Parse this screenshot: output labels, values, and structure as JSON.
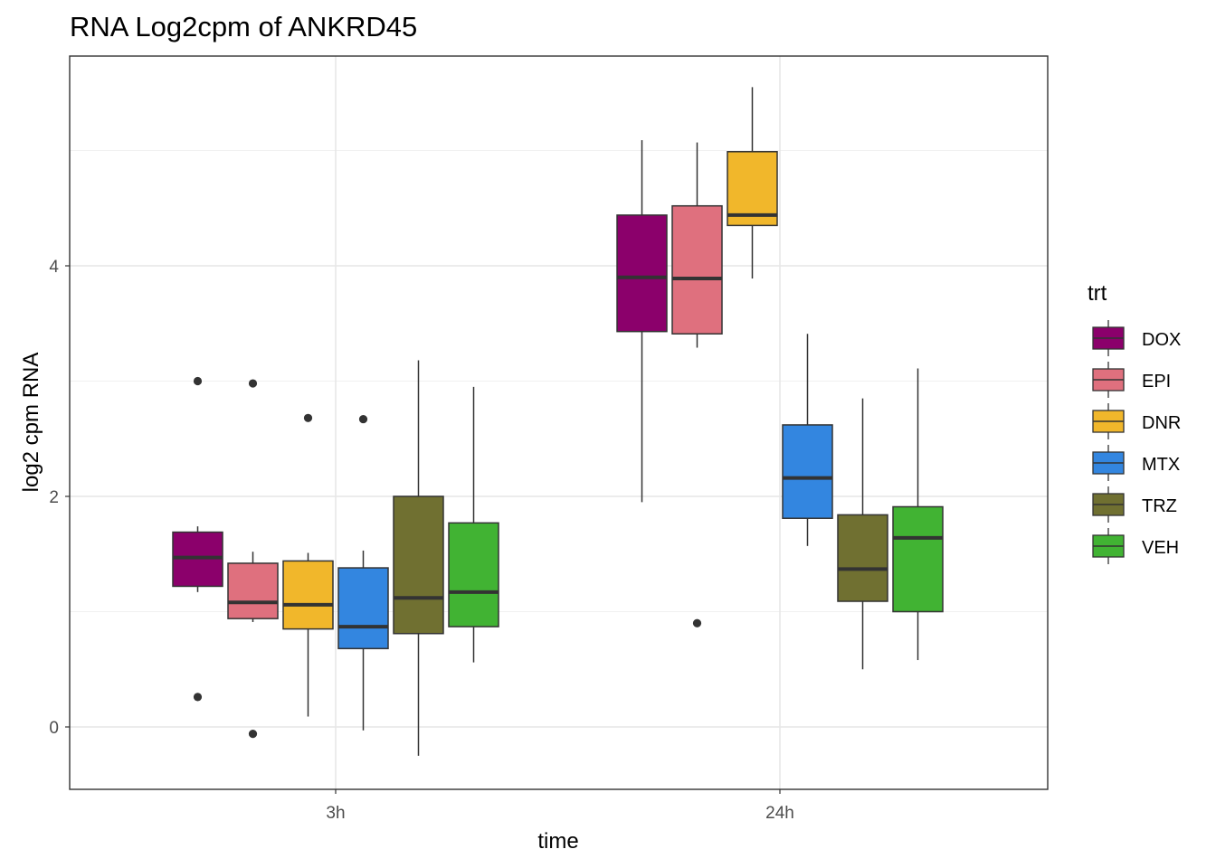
{
  "chart_data": {
    "type": "boxplot",
    "title": "RNA Log2cpm of ANKRD45",
    "xlabel": "time",
    "ylabel": "log2 cpm RNA",
    "categories": [
      "3h",
      "24h"
    ],
    "y_ticks": [
      0,
      2,
      4
    ],
    "ylim": [
      -0.55,
      5.8
    ],
    "grid": true,
    "legend": {
      "title": "trt",
      "position": "right"
    },
    "series": [
      {
        "name": "DOX",
        "color": "#8B006B",
        "boxes": [
          {
            "category": "3h",
            "q1": 1.22,
            "median": 1.47,
            "q3": 1.69,
            "lower_whisker": 1.17,
            "upper_whisker": 1.74,
            "outliers": [
              3.0,
              0.26
            ]
          },
          {
            "category": "24h",
            "q1": 3.43,
            "median": 3.9,
            "q3": 4.44,
            "lower_whisker": 1.95,
            "upper_whisker": 5.09,
            "outliers": []
          }
        ]
      },
      {
        "name": "EPI",
        "color": "#DF707E",
        "boxes": [
          {
            "category": "3h",
            "q1": 0.94,
            "median": 1.08,
            "q3": 1.42,
            "lower_whisker": 0.91,
            "upper_whisker": 1.52,
            "outliers": [
              2.98,
              -0.06
            ]
          },
          {
            "category": "24h",
            "q1": 3.41,
            "median": 3.89,
            "q3": 4.52,
            "lower_whisker": 3.29,
            "upper_whisker": 5.07,
            "outliers": [
              0.9
            ]
          }
        ]
      },
      {
        "name": "DNR",
        "color": "#F1B72B",
        "boxes": [
          {
            "category": "3h",
            "q1": 0.85,
            "median": 1.06,
            "q3": 1.44,
            "lower_whisker": 0.09,
            "upper_whisker": 1.51,
            "outliers": [
              2.68
            ]
          },
          {
            "category": "24h",
            "q1": 4.35,
            "median": 4.44,
            "q3": 4.99,
            "lower_whisker": 3.89,
            "upper_whisker": 5.55,
            "outliers": []
          }
        ]
      },
      {
        "name": "MTX",
        "color": "#3386E0",
        "boxes": [
          {
            "category": "3h",
            "q1": 0.68,
            "median": 0.87,
            "q3": 1.38,
            "lower_whisker": -0.03,
            "upper_whisker": 1.53,
            "outliers": [
              2.67
            ]
          },
          {
            "category": "24h",
            "q1": 1.81,
            "median": 2.16,
            "q3": 2.62,
            "lower_whisker": 1.57,
            "upper_whisker": 3.41,
            "outliers": []
          }
        ]
      },
      {
        "name": "TRZ",
        "color": "#707031",
        "boxes": [
          {
            "category": "3h",
            "q1": 0.81,
            "median": 1.12,
            "q3": 2.0,
            "lower_whisker": -0.25,
            "upper_whisker": 3.18,
            "outliers": []
          },
          {
            "category": "24h",
            "q1": 1.09,
            "median": 1.37,
            "q3": 1.84,
            "lower_whisker": 0.5,
            "upper_whisker": 2.85,
            "outliers": []
          }
        ]
      },
      {
        "name": "VEH",
        "color": "#41B333",
        "boxes": [
          {
            "category": "3h",
            "q1": 0.87,
            "median": 1.17,
            "q3": 1.77,
            "lower_whisker": 0.56,
            "upper_whisker": 2.95,
            "outliers": []
          },
          {
            "category": "24h",
            "q1": 1.0,
            "median": 1.64,
            "q3": 1.91,
            "lower_whisker": 0.58,
            "upper_whisker": 3.11,
            "outliers": []
          }
        ]
      }
    ]
  }
}
